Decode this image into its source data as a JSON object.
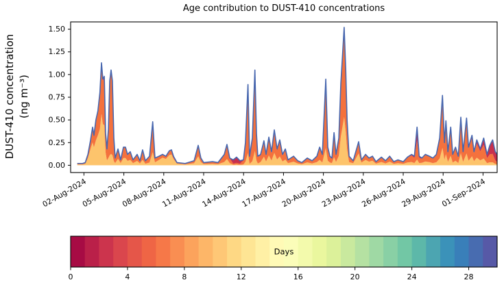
{
  "chart_data": {
    "type": "area",
    "subtype": "stacked-area-timeseries-with-total-line",
    "title": "Age contribution to DUST-410 concentrations",
    "ylabel_line1": "DUST-410 concentration",
    "ylabel_line2": "(ng m⁻³)",
    "x_range": {
      "start": "01-Aug-2024",
      "end": "02-Sep-2024"
    },
    "xlim_days": [
      0,
      32.06
    ],
    "ylim": [
      -0.08,
      1.58
    ],
    "grid": false,
    "legend": "none (colorbar encodes age in days)",
    "y_ticks": {
      "values": [
        0,
        0.25,
        0.5,
        0.75,
        1.0,
        1.25,
        1.5
      ],
      "labels": [
        "0.00",
        "0.25",
        "0.50",
        "0.75",
        "1.00",
        "1.25",
        "1.50"
      ]
    },
    "x_ticks": [
      {
        "day": 1,
        "label": "02-Aug-2024"
      },
      {
        "day": 4,
        "label": "05-Aug-2024"
      },
      {
        "day": 7,
        "label": "08-Aug-2024"
      },
      {
        "day": 10,
        "label": "11-Aug-2024"
      },
      {
        "day": 13,
        "label": "14-Aug-2024"
      },
      {
        "day": 16,
        "label": "17-Aug-2024"
      },
      {
        "day": 19,
        "label": "20-Aug-2024"
      },
      {
        "day": 22,
        "label": "23-Aug-2024"
      },
      {
        "day": 25,
        "label": "26-Aug-2024"
      },
      {
        "day": 28,
        "label": "29-Aug-2024"
      },
      {
        "day": 31,
        "label": "01-Sep-2024"
      }
    ],
    "total_line": {
      "name": "total-concentration-line",
      "color": "#4766ae",
      "width": 1.6
    },
    "age_layers": [
      {
        "name": "age-12-16-days",
        "color": "#fdc46c"
      },
      {
        "name": "age-6-10-days",
        "color": "#f4713d"
      },
      {
        "name": "age-0-3-days",
        "color": "#c8304c"
      }
    ],
    "points_format": [
      "days_since_01Aug2024",
      "total_ng_m3",
      "frac_layer0_yellow",
      "frac_layer1_orange",
      "frac_layer2_red"
    ],
    "points": [
      [
        0.5,
        0.02,
        0.5,
        0.45,
        0.05
      ],
      [
        0.9,
        0.02,
        0.5,
        0.45,
        0.05
      ],
      [
        1.1,
        0.03,
        0.55,
        0.4,
        0.05
      ],
      [
        1.3,
        0.12,
        0.65,
        0.33,
        0.02
      ],
      [
        1.5,
        0.28,
        0.65,
        0.33,
        0.02
      ],
      [
        1.65,
        0.42,
        0.6,
        0.38,
        0.02
      ],
      [
        1.75,
        0.33,
        0.6,
        0.38,
        0.02
      ],
      [
        1.9,
        0.5,
        0.55,
        0.43,
        0.02
      ],
      [
        2.05,
        0.6,
        0.55,
        0.43,
        0.02
      ],
      [
        2.2,
        0.8,
        0.5,
        0.48,
        0.02
      ],
      [
        2.32,
        1.13,
        0.5,
        0.48,
        0.02
      ],
      [
        2.42,
        0.95,
        0.48,
        0.5,
        0.02
      ],
      [
        2.53,
        0.98,
        0.45,
        0.53,
        0.02
      ],
      [
        2.63,
        0.35,
        0.4,
        0.58,
        0.02
      ],
      [
        2.73,
        0.18,
        0.3,
        0.68,
        0.02
      ],
      [
        2.84,
        0.4,
        0.2,
        0.78,
        0.02
      ],
      [
        2.94,
        0.93,
        0.12,
        0.86,
        0.02
      ],
      [
        3.04,
        1.05,
        0.12,
        0.86,
        0.02
      ],
      [
        3.14,
        0.93,
        0.12,
        0.86,
        0.02
      ],
      [
        3.25,
        0.3,
        0.15,
        0.83,
        0.02
      ],
      [
        3.35,
        0.08,
        0.3,
        0.68,
        0.02
      ],
      [
        3.56,
        0.18,
        0.4,
        0.58,
        0.02
      ],
      [
        3.76,
        0.06,
        0.4,
        0.58,
        0.02
      ],
      [
        3.97,
        0.2,
        0.4,
        0.58,
        0.02
      ],
      [
        4.12,
        0.2,
        0.4,
        0.58,
        0.02
      ],
      [
        4.28,
        0.12,
        0.4,
        0.58,
        0.02
      ],
      [
        4.48,
        0.15,
        0.4,
        0.58,
        0.02
      ],
      [
        4.69,
        0.06,
        0.4,
        0.58,
        0.02
      ],
      [
        5.0,
        0.12,
        0.4,
        0.58,
        0.02
      ],
      [
        5.21,
        0.05,
        0.4,
        0.58,
        0.02
      ],
      [
        5.41,
        0.17,
        0.35,
        0.63,
        0.02
      ],
      [
        5.62,
        0.05,
        0.35,
        0.63,
        0.02
      ],
      [
        5.93,
        0.1,
        0.3,
        0.68,
        0.02
      ],
      [
        6.17,
        0.48,
        0.3,
        0.68,
        0.02
      ],
      [
        6.34,
        0.08,
        0.4,
        0.58,
        0.02
      ],
      [
        6.65,
        0.1,
        0.6,
        0.38,
        0.02
      ],
      [
        6.91,
        0.12,
        0.7,
        0.28,
        0.02
      ],
      [
        7.16,
        0.1,
        0.7,
        0.28,
        0.02
      ],
      [
        7.42,
        0.16,
        0.7,
        0.28,
        0.02
      ],
      [
        7.58,
        0.17,
        0.7,
        0.28,
        0.02
      ],
      [
        7.73,
        0.1,
        0.7,
        0.28,
        0.02
      ],
      [
        7.99,
        0.03,
        0.6,
        0.38,
        0.02
      ],
      [
        8.61,
        0.02,
        0.5,
        0.48,
        0.02
      ],
      [
        9.28,
        0.05,
        0.45,
        0.53,
        0.02
      ],
      [
        9.59,
        0.22,
        0.45,
        0.53,
        0.02
      ],
      [
        9.79,
        0.08,
        0.45,
        0.53,
        0.02
      ],
      [
        10.0,
        0.03,
        0.45,
        0.53,
        0.02
      ],
      [
        10.67,
        0.04,
        0.4,
        0.58,
        0.02
      ],
      [
        11.08,
        0.03,
        0.4,
        0.58,
        0.02
      ],
      [
        11.55,
        0.12,
        0.3,
        0.68,
        0.02
      ],
      [
        11.75,
        0.23,
        0.3,
        0.68,
        0.02
      ],
      [
        11.96,
        0.08,
        0.3,
        0.65,
        0.05
      ],
      [
        12.22,
        0.06,
        0.1,
        0.2,
        0.7
      ],
      [
        12.47,
        0.09,
        0.1,
        0.2,
        0.7
      ],
      [
        12.73,
        0.05,
        0.1,
        0.25,
        0.65
      ],
      [
        12.99,
        0.06,
        0.15,
        0.75,
        0.1
      ],
      [
        13.14,
        0.25,
        0.15,
        0.8,
        0.05
      ],
      [
        13.33,
        0.89,
        0.15,
        0.8,
        0.05
      ],
      [
        13.45,
        0.1,
        0.15,
        0.8,
        0.05
      ],
      [
        13.66,
        0.3,
        0.15,
        0.8,
        0.05
      ],
      [
        13.85,
        1.05,
        0.15,
        0.8,
        0.05
      ],
      [
        13.97,
        0.35,
        0.15,
        0.8,
        0.05
      ],
      [
        14.07,
        0.1,
        0.2,
        0.75,
        0.05
      ],
      [
        14.28,
        0.12,
        0.3,
        0.6,
        0.1
      ],
      [
        14.53,
        0.27,
        0.35,
        0.55,
        0.1
      ],
      [
        14.69,
        0.12,
        0.35,
        0.55,
        0.1
      ],
      [
        14.9,
        0.31,
        0.35,
        0.55,
        0.1
      ],
      [
        15.1,
        0.15,
        0.35,
        0.55,
        0.1
      ],
      [
        15.31,
        0.39,
        0.35,
        0.55,
        0.1
      ],
      [
        15.52,
        0.18,
        0.35,
        0.55,
        0.1
      ],
      [
        15.72,
        0.28,
        0.35,
        0.55,
        0.1
      ],
      [
        15.93,
        0.12,
        0.35,
        0.55,
        0.1
      ],
      [
        16.14,
        0.18,
        0.35,
        0.55,
        0.1
      ],
      [
        16.34,
        0.06,
        0.4,
        0.55,
        0.05
      ],
      [
        16.76,
        0.1,
        0.4,
        0.55,
        0.05
      ],
      [
        17.07,
        0.05,
        0.4,
        0.58,
        0.02
      ],
      [
        17.38,
        0.03,
        0.4,
        0.58,
        0.02
      ],
      [
        17.79,
        0.08,
        0.4,
        0.58,
        0.02
      ],
      [
        18.15,
        0.05,
        0.4,
        0.58,
        0.02
      ],
      [
        18.51,
        0.1,
        0.35,
        0.63,
        0.02
      ],
      [
        18.72,
        0.2,
        0.3,
        0.68,
        0.02
      ],
      [
        18.92,
        0.12,
        0.25,
        0.73,
        0.02
      ],
      [
        19.18,
        0.95,
        0.2,
        0.78,
        0.02
      ],
      [
        19.33,
        0.2,
        0.25,
        0.73,
        0.02
      ],
      [
        19.49,
        0.1,
        0.3,
        0.68,
        0.02
      ],
      [
        19.64,
        0.08,
        0.3,
        0.68,
        0.02
      ],
      [
        19.8,
        0.36,
        0.25,
        0.73,
        0.02
      ],
      [
        19.95,
        0.12,
        0.3,
        0.68,
        0.02
      ],
      [
        20.16,
        0.3,
        0.35,
        0.63,
        0.02
      ],
      [
        20.31,
        0.9,
        0.35,
        0.63,
        0.02
      ],
      [
        20.42,
        1.17,
        0.35,
        0.63,
        0.02
      ],
      [
        20.56,
        1.52,
        0.35,
        0.63,
        0.02
      ],
      [
        20.68,
        1.05,
        0.35,
        0.63,
        0.02
      ],
      [
        20.78,
        0.5,
        0.35,
        0.63,
        0.02
      ],
      [
        20.93,
        0.1,
        0.35,
        0.63,
        0.02
      ],
      [
        21.24,
        0.05,
        0.45,
        0.53,
        0.02
      ],
      [
        21.65,
        0.26,
        0.5,
        0.48,
        0.02
      ],
      [
        21.86,
        0.06,
        0.5,
        0.48,
        0.02
      ],
      [
        22.17,
        0.12,
        0.5,
        0.48,
        0.02
      ],
      [
        22.43,
        0.08,
        0.5,
        0.48,
        0.02
      ],
      [
        22.69,
        0.1,
        0.5,
        0.48,
        0.02
      ],
      [
        22.95,
        0.04,
        0.45,
        0.53,
        0.02
      ],
      [
        23.36,
        0.09,
        0.4,
        0.58,
        0.02
      ],
      [
        23.67,
        0.05,
        0.4,
        0.58,
        0.02
      ],
      [
        23.98,
        0.1,
        0.4,
        0.58,
        0.02
      ],
      [
        24.29,
        0.04,
        0.4,
        0.58,
        0.02
      ],
      [
        24.6,
        0.06,
        0.4,
        0.58,
        0.02
      ],
      [
        25.01,
        0.04,
        0.4,
        0.58,
        0.02
      ],
      [
        25.32,
        0.09,
        0.35,
        0.6,
        0.05
      ],
      [
        25.63,
        0.12,
        0.3,
        0.6,
        0.1
      ],
      [
        25.84,
        0.1,
        0.25,
        0.55,
        0.2
      ],
      [
        26.04,
        0.42,
        0.15,
        0.5,
        0.35
      ],
      [
        26.2,
        0.1,
        0.25,
        0.55,
        0.2
      ],
      [
        26.4,
        0.08,
        0.35,
        0.55,
        0.1
      ],
      [
        26.66,
        0.12,
        0.35,
        0.6,
        0.05
      ],
      [
        26.97,
        0.1,
        0.35,
        0.6,
        0.05
      ],
      [
        27.23,
        0.08,
        0.3,
        0.65,
        0.05
      ],
      [
        27.49,
        0.12,
        0.28,
        0.67,
        0.05
      ],
      [
        27.74,
        0.3,
        0.25,
        0.7,
        0.05
      ],
      [
        27.95,
        0.77,
        0.25,
        0.7,
        0.05
      ],
      [
        28.1,
        0.25,
        0.25,
        0.7,
        0.05
      ],
      [
        28.21,
        0.49,
        0.25,
        0.7,
        0.05
      ],
      [
        28.36,
        0.15,
        0.25,
        0.7,
        0.05
      ],
      [
        28.57,
        0.42,
        0.25,
        0.7,
        0.05
      ],
      [
        28.72,
        0.12,
        0.25,
        0.7,
        0.05
      ],
      [
        28.93,
        0.2,
        0.25,
        0.7,
        0.05
      ],
      [
        29.14,
        0.1,
        0.25,
        0.7,
        0.05
      ],
      [
        29.33,
        0.53,
        0.25,
        0.7,
        0.05
      ],
      [
        29.5,
        0.15,
        0.25,
        0.7,
        0.05
      ],
      [
        29.76,
        0.52,
        0.25,
        0.7,
        0.05
      ],
      [
        29.91,
        0.2,
        0.25,
        0.7,
        0.05
      ],
      [
        30.17,
        0.33,
        0.3,
        0.6,
        0.1
      ],
      [
        30.32,
        0.15,
        0.3,
        0.6,
        0.1
      ],
      [
        30.53,
        0.28,
        0.3,
        0.55,
        0.15
      ],
      [
        30.79,
        0.18,
        0.3,
        0.55,
        0.15
      ],
      [
        31.05,
        0.3,
        0.25,
        0.5,
        0.25
      ],
      [
        31.3,
        0.12,
        0.2,
        0.45,
        0.35
      ],
      [
        31.51,
        0.22,
        0.15,
        0.4,
        0.45
      ],
      [
        31.72,
        0.28,
        0.12,
        0.33,
        0.55
      ],
      [
        31.92,
        0.15,
        0.1,
        0.25,
        0.65
      ],
      [
        32.06,
        0.12,
        0.1,
        0.2,
        0.7
      ]
    ],
    "colorbar": {
      "label": "Days",
      "vmin": 0,
      "vmax": 30,
      "n_segments": 30,
      "ticks": [
        0,
        4,
        8,
        12,
        16,
        20,
        24,
        28
      ],
      "tick_labels": [
        "0",
        "4",
        "8",
        "12",
        "16",
        "20",
        "24",
        "28"
      ],
      "colormap": "Spectral (discrete, 30 bins)",
      "spectral_anchors": [
        "#9e0142",
        "#d53e4f",
        "#f46d43",
        "#fdae61",
        "#fee08b",
        "#ffffbf",
        "#e6f598",
        "#abdda4",
        "#66c2a5",
        "#3288bd",
        "#5e4fa2"
      ]
    }
  }
}
